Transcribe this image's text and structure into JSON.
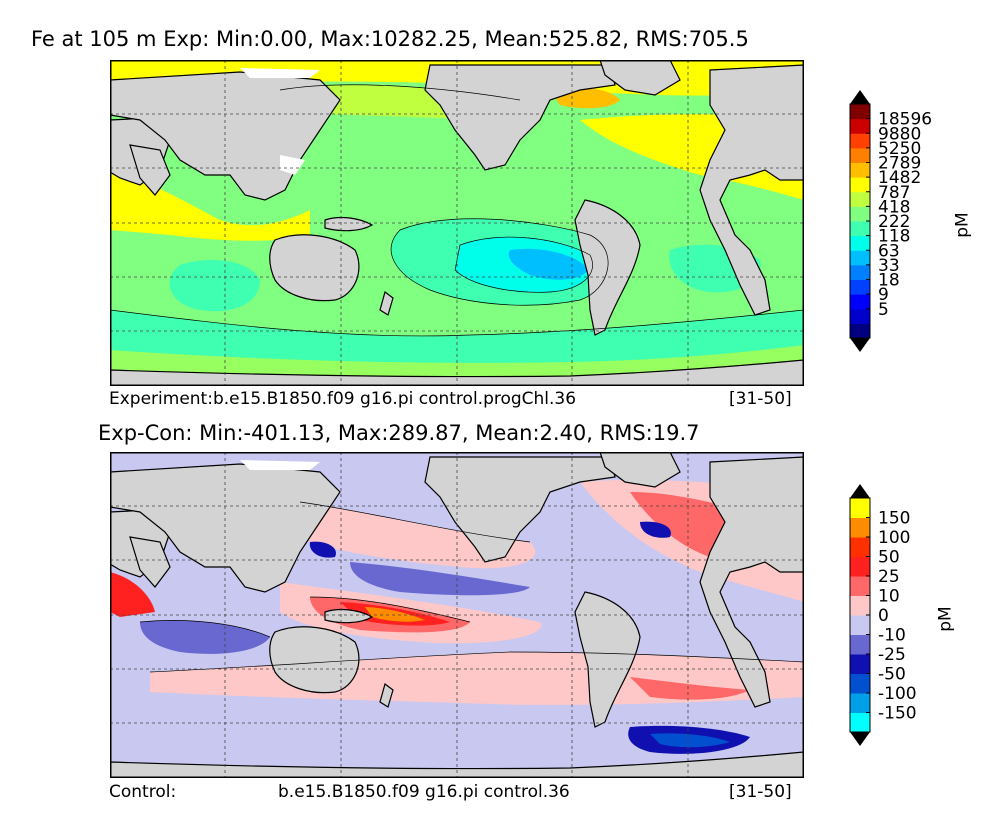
{
  "chart_data": [
    {
      "type": "heatmap",
      "title": "Fe at 105 m Exp: Min:0.00, Max:10282.25, Mean:525.82, RMS:705.5",
      "caption_left": "Experiment:b.e15.B1850.f09 g16.pi control.progChl.36",
      "caption_right": "[31-50]",
      "colorbar": {
        "unit": "pM",
        "ticks": [
          "18596",
          "9880",
          "5250",
          "2789",
          "1482",
          "787",
          "418",
          "222",
          "118",
          "63",
          "33",
          "18",
          "9",
          "5"
        ],
        "colors": [
          "#000080",
          "#0000cd",
          "#0000ff",
          "#0040ff",
          "#0080ff",
          "#00bfff",
          "#00ffea",
          "#3fffb0",
          "#80ff80",
          "#bfff40",
          "#ffff00",
          "#ffbf00",
          "#ff8000",
          "#ff4000",
          "#cd0000",
          "#800000"
        ]
      },
      "colors": {
        "land": "#d3d3d3",
        "ice": "#ffffff"
      }
    },
    {
      "type": "heatmap",
      "title": "Exp-Con: Min:-401.13, Max:289.87, Mean:2.40, RMS:19.7",
      "caption_left": "Control:",
      "caption_center": "b.e15.B1850.f09 g16.pi control.36",
      "caption_right": "[31-50]",
      "colorbar": {
        "unit": "pM",
        "ticks": [
          "150",
          "100",
          "50",
          "25",
          "10",
          "0",
          "-10",
          "-25",
          "-50",
          "-100",
          "-150"
        ],
        "colors": [
          "#00ffff",
          "#00a0e8",
          "#0050d0",
          "#1010b0",
          "#6868d0",
          "#c8c8f0",
          "#ffc8c8",
          "#ff6868",
          "#ff2020",
          "#ff3000",
          "#ff8c00",
          "#ffff00"
        ]
      },
      "colors": {
        "land": "#d3d3d3",
        "ice": "#ffffff"
      }
    }
  ]
}
